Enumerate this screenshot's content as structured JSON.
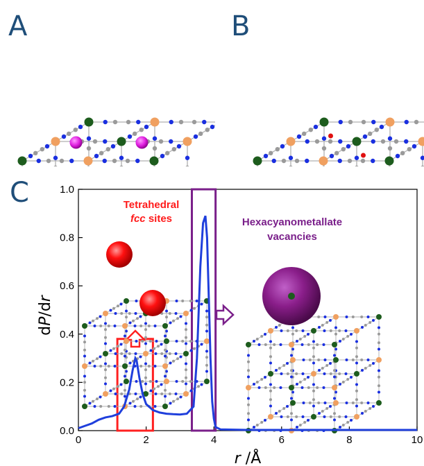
{
  "panels": {
    "a": "A",
    "b": "B",
    "c": "C"
  },
  "colors": {
    "curve": "#1f3fdc",
    "red_box": "#ff2020",
    "purple_box": "#7a1f8a",
    "metal_green": "#1d5c1d",
    "metal_orange": "#f0a060",
    "carbon_gray": "#9a9a9a",
    "nitrogen_blue": "#1a2fe0",
    "cation_magenta": "#e020e0",
    "water_red": "#e01010"
  },
  "annotations": {
    "tetra_line1": "Tetrahedral",
    "tetra_line2_italic": "fcc",
    "tetra_line2_rest": " sites",
    "hexa_line1": "Hexacyanometallate",
    "hexa_line2": "vacancies"
  },
  "chart_data": {
    "type": "line",
    "xlabel_var": "r",
    "xlabel_unit": "Å",
    "ylabel_d1": "d",
    "ylabel_var1": "P",
    "ylabel_sep": "/d",
    "ylabel_var2": "r",
    "xlim": [
      0,
      10
    ],
    "ylim": [
      0,
      1.0
    ],
    "xticks": [
      "0",
      "2",
      "4",
      "6",
      "8",
      "10"
    ],
    "yticks": [
      "0.0",
      "0.2",
      "0.4",
      "0.6",
      "0.8",
      "1.0"
    ],
    "series": [
      {
        "x": [
          0,
          0.2,
          0.4,
          0.6,
          0.8,
          1.0,
          1.2,
          1.35,
          1.5,
          1.6,
          1.68,
          1.72,
          1.8,
          1.9,
          2.0,
          2.2,
          2.4,
          2.6,
          2.8,
          3.0,
          3.2,
          3.4,
          3.5,
          3.6,
          3.68,
          3.75,
          3.8,
          3.85,
          3.9,
          3.95,
          4.0,
          4.05,
          4.2,
          5,
          6,
          7,
          8,
          9,
          10
        ],
        "y": [
          0.01,
          0.02,
          0.03,
          0.045,
          0.055,
          0.06,
          0.07,
          0.1,
          0.17,
          0.25,
          0.3,
          0.29,
          0.22,
          0.15,
          0.11,
          0.085,
          0.075,
          0.07,
          0.068,
          0.067,
          0.07,
          0.1,
          0.3,
          0.68,
          0.86,
          0.89,
          0.8,
          0.55,
          0.3,
          0.12,
          0.05,
          0.015,
          0.005,
          0.003,
          0.003,
          0.003,
          0.003,
          0.003,
          0.003
        ]
      }
    ],
    "highlight_boxes": [
      {
        "name": "tetrahedral",
        "x_range": [
          1.15,
          2.2
        ],
        "y_range": [
          0,
          0.38
        ]
      },
      {
        "name": "vacancies",
        "x_range": [
          3.35,
          4.05
        ],
        "y_range": [
          0,
          1.0
        ]
      }
    ]
  }
}
